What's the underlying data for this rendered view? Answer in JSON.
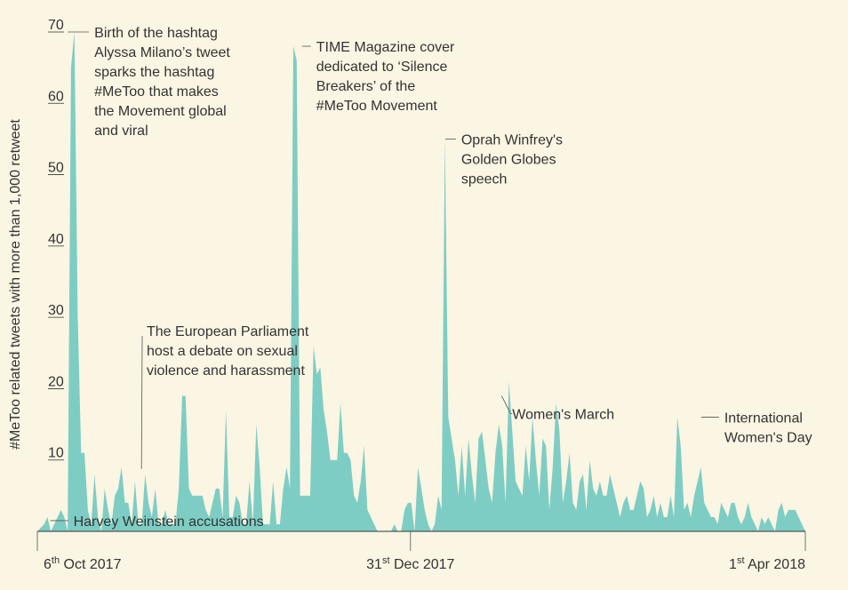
{
  "chart_data": {
    "type": "area",
    "ylabel": "#MeToo related tweets with more than 1,000 retweet",
    "ylim": [
      0,
      70
    ],
    "yticks": [
      10,
      20,
      30,
      40,
      50,
      60,
      70
    ],
    "xlim": [
      "2017-10-06",
      "2018-04-01"
    ],
    "date_labels": [
      {
        "date": "2017-10-06",
        "day": "6",
        "suffix": "th",
        "rest": " Oct 2017"
      },
      {
        "date": "2017-12-31",
        "day": "31",
        "suffix": "st",
        "rest": " Dec 2017"
      },
      {
        "date": "2018-04-01",
        "day": "1",
        "suffix": "st",
        "rest": " Apr 2018"
      }
    ],
    "fill_color": "#7ecdc4",
    "series": [
      {
        "values": [
          0,
          0.5,
          1,
          2,
          0,
          1,
          2,
          3,
          2,
          0,
          65,
          70,
          30,
          11,
          11,
          3,
          1,
          8,
          2,
          0,
          6,
          3,
          1,
          5,
          6,
          9,
          4,
          4,
          1,
          7,
          1,
          1,
          8,
          4,
          2,
          6,
          1,
          1,
          3,
          1,
          1,
          1,
          6,
          19,
          19,
          6,
          5,
          5,
          5,
          5,
          3,
          2,
          4,
          6,
          6,
          2,
          17,
          2,
          2,
          5,
          4,
          1,
          1,
          7,
          1,
          15,
          9,
          1,
          1,
          1,
          7,
          1,
          1,
          6,
          9,
          6,
          68,
          66,
          5,
          5,
          5,
          5,
          26,
          22,
          23,
          17,
          14,
          10,
          10,
          10,
          18,
          11,
          11,
          10,
          5,
          4,
          7,
          12,
          3,
          2,
          1,
          0,
          0,
          0,
          0,
          0,
          1,
          0,
          0,
          3,
          4,
          4,
          0,
          9,
          6,
          3,
          1,
          0,
          1,
          5,
          3,
          55,
          16,
          13,
          10,
          5,
          12,
          5,
          13,
          8,
          4,
          13,
          14,
          10,
          6,
          4,
          11,
          15,
          12,
          4,
          21,
          14,
          7,
          6,
          5,
          12,
          7,
          16,
          10,
          5,
          13,
          12,
          3,
          9,
          18,
          14,
          4,
          7,
          11,
          4,
          3,
          7,
          8,
          3,
          10,
          6,
          5,
          7,
          5,
          5,
          8,
          6,
          4,
          2,
          4,
          5,
          3,
          3,
          5,
          7,
          6,
          2,
          3,
          5,
          2,
          4,
          2,
          2,
          5,
          2,
          16,
          12,
          3,
          4,
          2,
          5,
          7,
          9,
          4,
          3,
          2,
          2,
          1,
          4,
          3,
          2,
          4,
          4,
          2,
          1,
          2,
          4,
          2,
          1,
          0,
          2,
          1,
          2,
          1,
          0,
          3,
          4,
          2,
          3,
          3,
          3,
          2,
          1,
          0
        ]
      }
    ],
    "annotations": [
      {
        "date": "2017-10-09",
        "value": 1.5,
        "lines": [
          "Harvey Weinstein accusations"
        ]
      },
      {
        "date": "2017-10-13",
        "value": 70,
        "lines": [
          "Birth of the hashtag",
          "Alyssa Milano’s tweet",
          "sparks the hashtag",
          "#MeToo that makes",
          "the Movement global",
          "and viral"
        ]
      },
      {
        "date": "2017-10-30",
        "value": 8,
        "lines": [
          "The European Parliament",
          "host a debate on sexual",
          "violence and harassment"
        ]
      },
      {
        "date": "2017-12-06",
        "value": 68,
        "lines": [
          "TIME Magazine cover",
          "dedicated to ‘Silence",
          "Breakers’ of the",
          "#MeToo Movement"
        ]
      },
      {
        "date": "2018-01-08",
        "value": 55,
        "lines": [
          "Oprah Winfrey's",
          "Golden Globes",
          "speech"
        ]
      },
      {
        "date": "2018-01-21",
        "value": 19,
        "lines": [
          "Women's March"
        ]
      },
      {
        "date": "2018-03-08",
        "value": 16,
        "lines": [
          "International",
          "Women's Day"
        ]
      }
    ]
  }
}
